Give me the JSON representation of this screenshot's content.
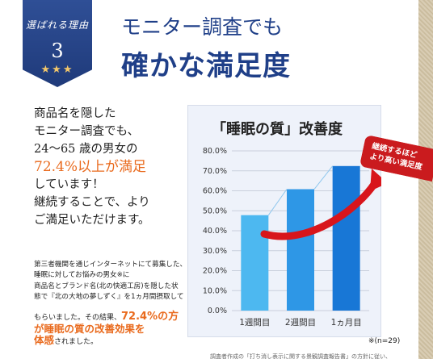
{
  "badge": {
    "label": "選ばれる理由",
    "number": "3",
    "stars": "★★★"
  },
  "heading": {
    "line1": "モニター調査でも",
    "line2": "確かな満足度"
  },
  "body": {
    "l1": "商品名を隠した",
    "l2": "モニター調査でも、",
    "l3": "24〜65 歳の男女の",
    "l4": "72.4%以上が満足",
    "l5": "しています！",
    "l6": "継続することで、より",
    "l7": "ご満足いただけます。"
  },
  "note": {
    "l1": "第三者機関を通じインターネットにて募集した、",
    "l2": "睡眠に対してお悩みの男女※に",
    "l3": "商品名とブランド名(北の快適工房)を隠した状",
    "l4": "態で『北の大地の夢しずく』を1ヵ月間摂取して"
  },
  "note2": {
    "l1a": "もらいました。その結果、",
    "l1b": "72.4%の方",
    "l2": "が睡眠の質の改善効果を",
    "l3a": "体感",
    "l3b": "されました。"
  },
  "ribbon": {
    "l1": "継続するほど",
    "l2": "より高い満足度"
  },
  "n_footnote": "※(n=29)",
  "footnote": "調査者作成の「打ち消し表示に関する景観調査報告書」の方針に従い、",
  "chart_data": {
    "type": "bar",
    "title": "「睡眠の質」改善度",
    "categories": [
      "1週間目",
      "2週間目",
      "1ヵ月目"
    ],
    "values": [
      47.8,
      60.8,
      72.4
    ],
    "ylim": [
      0,
      80
    ],
    "yticks": [
      "0.0%",
      "10.0%",
      "20.0%",
      "30.0%",
      "40.0%",
      "50.0%",
      "60.0%",
      "70.0%",
      "80.0%"
    ],
    "colors": [
      "#4db8f0",
      "#2e97e6",
      "#1877d6"
    ]
  }
}
